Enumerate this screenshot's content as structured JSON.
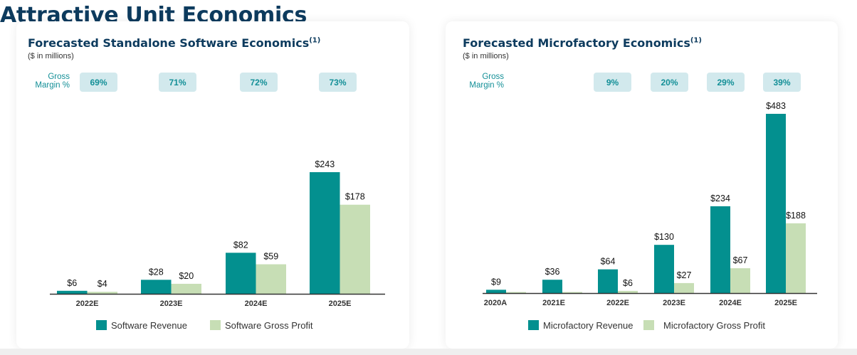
{
  "page": {
    "title": "Attractive Unit Economics"
  },
  "colors": {
    "revenue": "#03908f",
    "gross_profit": "#c7deb5",
    "badge_bg": "#d2e9ed",
    "badge_text": "#138f97",
    "title": "#0d3b5e"
  },
  "chart_data": [
    {
      "type": "bar",
      "title": "Forecasted Standalone Software Economics",
      "title_footnote": "(1)",
      "subtitle": "($ in millions)",
      "xlabel": "",
      "ylabel": "",
      "ylim": [
        0,
        250
      ],
      "grid": false,
      "legend_position": "bottom",
      "gross_margin_label_line1": "Gross",
      "gross_margin_label_line2": "Margin %",
      "categories": [
        "2022E",
        "2023E",
        "2024E",
        "2025E"
      ],
      "gross_margin": [
        "69%",
        "71%",
        "72%",
        "73%"
      ],
      "series": [
        {
          "name": "Software Revenue",
          "key": "revenue",
          "values": [
            6,
            28,
            82,
            243
          ],
          "labels": [
            "$6",
            "$28",
            "$82",
            "$243"
          ]
        },
        {
          "name": "Software Gross Profit",
          "key": "gross_profit",
          "values": [
            4,
            20,
            59,
            178
          ],
          "labels": [
            "$4",
            "$20",
            "$59",
            "$178"
          ]
        }
      ]
    },
    {
      "type": "bar",
      "title": "Forecasted Microfactory Economics",
      "title_footnote": "(1)",
      "subtitle": "($ in millions)",
      "xlabel": "",
      "ylabel": "",
      "ylim": [
        0,
        500
      ],
      "grid": false,
      "legend_position": "bottom",
      "gross_margin_label_line1": "Gross",
      "gross_margin_label_line2": "Margin %",
      "categories": [
        "2020A",
        "2021E",
        "2022E",
        "2023E",
        "2024E",
        "2025E"
      ],
      "gross_margin": [
        null,
        null,
        "9%",
        "20%",
        "29%",
        "39%"
      ],
      "series": [
        {
          "name": "Microfactory Revenue",
          "key": "revenue",
          "values": [
            9,
            36,
            64,
            130,
            234,
            483
          ],
          "labels": [
            "$9",
            "$36",
            "$64",
            "$130",
            "$234",
            "$483"
          ]
        },
        {
          "name": "Microfactory Gross Profit",
          "key": "gross_profit",
          "values": [
            0,
            0,
            6,
            27,
            67,
            188
          ],
          "labels": [
            null,
            null,
            "$6",
            "$27",
            "$67",
            "$188"
          ]
        }
      ]
    }
  ]
}
